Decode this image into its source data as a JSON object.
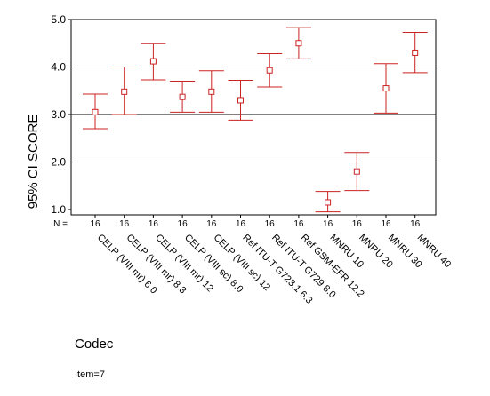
{
  "chart_data": {
    "type": "errorbar",
    "title": "",
    "xlabel": "Codec",
    "ylabel": "95% CI SCORE",
    "ylim": [
      1.0,
      5.0
    ],
    "yticks": [
      "1.0",
      "2.0",
      "3.0",
      "4.0",
      "5.0"
    ],
    "gridlines_y": [
      2.0,
      3.0,
      4.0
    ],
    "grid": "horizontal",
    "n_prefix": "N =",
    "categories": [
      "CELP (VIII mr) 6.0",
      "CELP (VIII mr) 8.3",
      "CELP (VIII mr) 12",
      "CELP (VIII sc) 8.0",
      "CELP (VIII sc) 12",
      "Ref ITU-T G723.1 6.3",
      "Ref ITU-T G729 8.0",
      "Ref GSM-EFR 12.2",
      "MNRU 10",
      "MNRU 20",
      "MNRU 30",
      "MNRU 40"
    ],
    "n": [
      "16",
      "16",
      "16",
      "16",
      "16",
      "16",
      "16",
      "16",
      "16",
      "16",
      "16",
      "16"
    ],
    "means": [
      3.05,
      3.48,
      4.12,
      3.37,
      3.48,
      3.3,
      3.93,
      4.5,
      1.15,
      1.8,
      3.55,
      4.3
    ],
    "lower": [
      2.7,
      3.0,
      3.73,
      3.05,
      3.05,
      2.88,
      3.58,
      4.17,
      0.95,
      1.4,
      3.03,
      3.88
    ],
    "upper": [
      3.43,
      4.0,
      4.5,
      3.7,
      3.92,
      3.72,
      4.28,
      4.83,
      1.38,
      2.2,
      4.07,
      4.73
    ],
    "series_color": "#cc2222",
    "marker": "open-square"
  },
  "footnote": "Item=7"
}
